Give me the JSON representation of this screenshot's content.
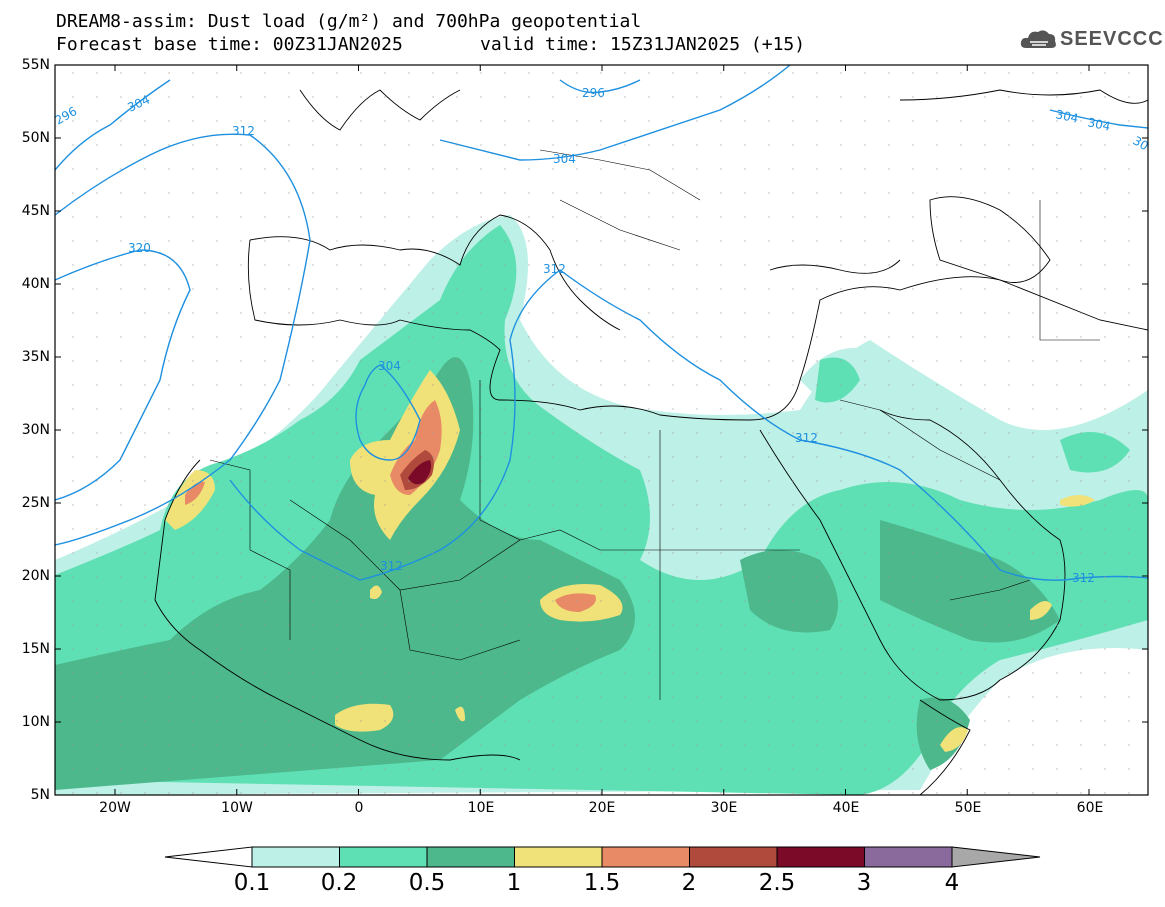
{
  "title": {
    "line1": "DREAM8-assim: Dust load (g/m²) and 700hPa geopotential",
    "line2_left": "Forecast base time: 00Z31JAN2025",
    "line2_right": "valid time: 15Z31JAN2025 (+15)"
  },
  "logo": {
    "text": "SEEVCCC",
    "icon": "cloud-icon"
  },
  "axes": {
    "lat_labels": [
      "55N",
      "50N",
      "45N",
      "40N",
      "35N",
      "30N",
      "25N",
      "20N",
      "15N",
      "10N",
      "5N"
    ],
    "lon_labels": [
      "20W",
      "10W",
      "0",
      "10E",
      "20E",
      "30E",
      "40E",
      "50E",
      "60E"
    ]
  },
  "contour_labels": [
    "296",
    "304",
    "312",
    "320",
    "304",
    "296",
    "304",
    "304",
    "304",
    "312",
    "312",
    "312",
    "312",
    "30"
  ],
  "colorbar": {
    "labels": [
      "0.1",
      "0.2",
      "0.5",
      "1",
      "1.5",
      "2",
      "2.5",
      "3",
      "4"
    ],
    "colors": [
      "#bdf0e6",
      "#5fe0b4",
      "#4cb88c",
      "#f0e278",
      "#e88a66",
      "#b04a3c",
      "#7a0a28",
      "#8a6a9c",
      "#a8a8a8"
    ]
  },
  "palette": {
    "dust_0_1": "#bdf0e6",
    "dust_0_2": "#5fe0b4",
    "dust_0_5": "#4cb88c",
    "dust_1": "#f0e278",
    "dust_1_5": "#e88a66",
    "dust_2": "#b04a3c",
    "dust_2_5": "#7a0a28",
    "geopotential": "#1e90e0"
  }
}
